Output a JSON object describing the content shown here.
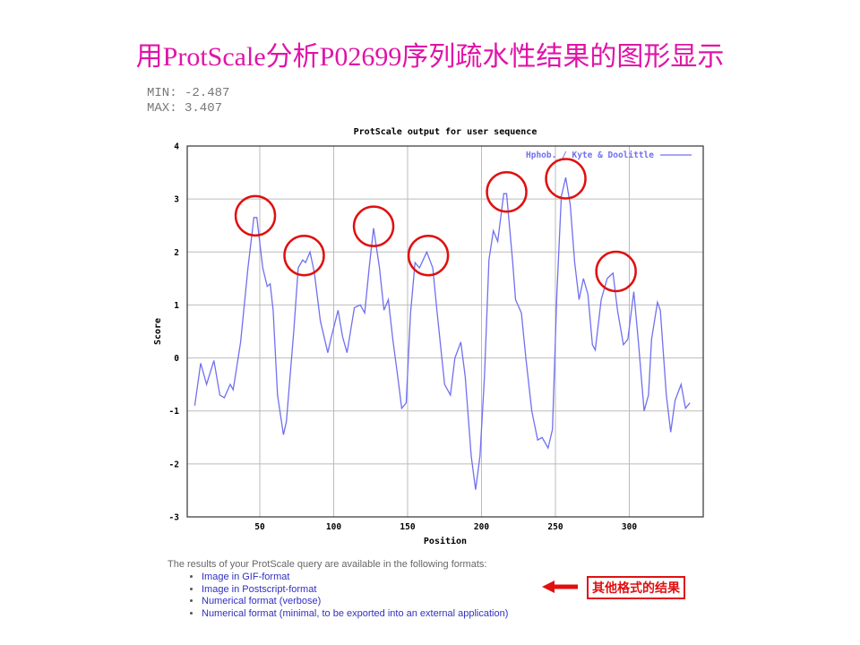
{
  "slide_title": "用ProtScale分析P02699序列疏水性结果的图形显示",
  "min_label": "MIN: -2.487",
  "max_label": "MAX: 3.407",
  "results": {
    "intro": "The results of your ProtScale query are available in the following formats:",
    "links": [
      "Image in GIF-format",
      "Image in Postscript-format",
      "Numerical format (verbose)",
      "Numerical format (minimal, to be exported into an external application)"
    ]
  },
  "callout": "其他格式的结果",
  "colors": {
    "title": "#e014a8",
    "line": "#7070f0",
    "circle": "#e01010",
    "grid": "#bbbbbb"
  },
  "chart_data": {
    "type": "line",
    "title": "ProtScale output for user sequence",
    "xlabel": "Position",
    "ylabel": "Score",
    "xlim": [
      0,
      348
    ],
    "ylim": [
      -3,
      4
    ],
    "xticks": [
      50,
      100,
      150,
      200,
      250,
      300
    ],
    "yticks": [
      -3,
      -2,
      -1,
      0,
      1,
      2,
      3,
      4
    ],
    "grid": true,
    "legend": {
      "label": "Hphob. / Kyte & Doolittle",
      "placement": "top-right"
    },
    "series": [
      {
        "name": "Hphob. / Kyte & Doolittle",
        "x": [
          6,
          10,
          14,
          19,
          23,
          26,
          30,
          32,
          37,
          42,
          46,
          48,
          52,
          55,
          57,
          59,
          62,
          66,
          68,
          73,
          76,
          79,
          81,
          84,
          87,
          91,
          96,
          98,
          103,
          106,
          109,
          114,
          118,
          121,
          124,
          127,
          131,
          134,
          137,
          140,
          144,
          146,
          149,
          152,
          155,
          158,
          163,
          167,
          170,
          175,
          179,
          182,
          186,
          189,
          193,
          196,
          199,
          202,
          205,
          208,
          211,
          215,
          217,
          221,
          223,
          227,
          230,
          234,
          238,
          241,
          245,
          248,
          251,
          254,
          257,
          260,
          263,
          266,
          269,
          272,
          275,
          277,
          281,
          285,
          289,
          292,
          296,
          299,
          303,
          306,
          310,
          313,
          315,
          319,
          321,
          325,
          328,
          331,
          335,
          338,
          341
        ],
        "y": [
          -0.9,
          -0.1,
          -0.5,
          -0.05,
          -0.7,
          -0.75,
          -0.5,
          -0.6,
          0.3,
          1.7,
          2.65,
          2.65,
          1.7,
          1.35,
          1.4,
          0.9,
          -0.7,
          -1.45,
          -1.2,
          0.5,
          1.7,
          1.85,
          1.8,
          2.0,
          1.6,
          0.7,
          0.1,
          0.35,
          0.9,
          0.4,
          0.1,
          0.95,
          1.0,
          0.85,
          1.7,
          2.45,
          1.7,
          0.9,
          1.1,
          0.35,
          -0.5,
          -0.95,
          -0.85,
          0.85,
          1.8,
          1.7,
          2.0,
          1.7,
          0.85,
          -0.5,
          -0.7,
          0,
          0.3,
          -0.35,
          -1.85,
          -2.487,
          -1.85,
          -0.35,
          1.85,
          2.4,
          2.2,
          3.1,
          3.1,
          1.85,
          1.1,
          0.85,
          0,
          -1.0,
          -1.55,
          -1.5,
          -1.7,
          -1.35,
          1.2,
          3.05,
          3.407,
          2.9,
          1.8,
          1.1,
          1.5,
          1.2,
          0.25,
          0.15,
          1.1,
          1.5,
          1.6,
          0.9,
          0.25,
          0.35,
          1.25,
          0.35,
          -1.0,
          -0.7,
          0.35,
          1.05,
          0.9,
          -0.7,
          -1.4,
          -0.8,
          -0.5,
          -0.95,
          -0.85
        ]
      }
    ],
    "annotations": {
      "circled_peaks": [
        [
          47,
          2.65
        ],
        [
          80,
          1.9
        ],
        [
          127,
          2.45
        ],
        [
          164,
          1.9
        ],
        [
          217,
          3.1
        ],
        [
          257,
          3.35
        ],
        [
          291,
          1.6
        ]
      ]
    }
  }
}
